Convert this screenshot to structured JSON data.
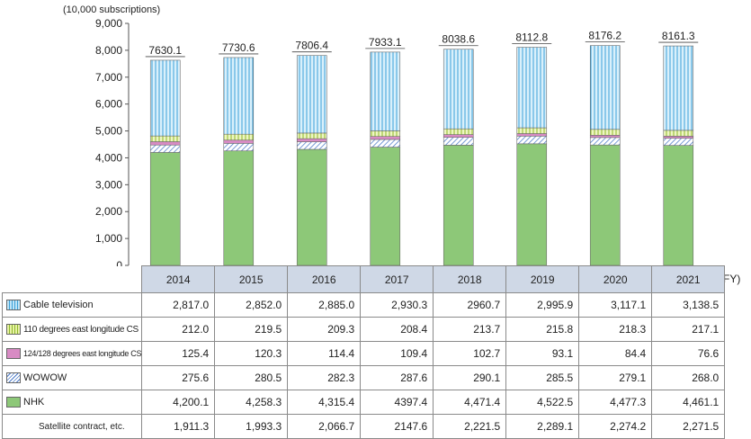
{
  "unit_label": "(10,000 subscriptions)",
  "fy_label": "(FY)",
  "chart_data": {
    "type": "bar",
    "stacked": true,
    "categories": [
      "2014",
      "2015",
      "2016",
      "2017",
      "2018",
      "2019",
      "2020",
      "2021"
    ],
    "ylim": [
      0,
      9000
    ],
    "yticks": [
      "0",
      "1,000",
      "2,000",
      "3,000",
      "4,000",
      "5,000",
      "6,000",
      "7,000",
      "8,000",
      "9,000"
    ],
    "totals": [
      "7630.1",
      "7730.6",
      "7806.4",
      "7933.1",
      "8038.6",
      "8112.8",
      "8176.2",
      "8161.3"
    ],
    "total_values": [
      7630.1,
      7730.6,
      7806.4,
      7933.1,
      8038.6,
      8112.8,
      8176.2,
      8161.3
    ],
    "series": [
      {
        "name": "NHK",
        "values": [
          4200.1,
          4258.3,
          4315.4,
          4397.4,
          4471.4,
          4522.5,
          4477.3,
          4461.1
        ],
        "color": "#8dc878"
      },
      {
        "name": "WOWOW",
        "values": [
          275.6,
          280.5,
          282.3,
          287.6,
          290.1,
          285.5,
          279.1,
          268.0
        ],
        "color": "#4b7ac8"
      },
      {
        "name": "124/128 degrees east longitude CS",
        "values": [
          125.4,
          120.3,
          114.4,
          109.4,
          102.7,
          93.1,
          84.4,
          76.6
        ],
        "color": "#d88bc4"
      },
      {
        "name": "110 degrees east longitude CS",
        "values": [
          212.0,
          219.5,
          209.3,
          208.4,
          213.7,
          215.8,
          218.3,
          217.1
        ],
        "color": "#c8e07a"
      },
      {
        "name": "Cable television",
        "values": [
          2817.0,
          2852.0,
          2885.0,
          2930.3,
          2960.7,
          2995.9,
          3117.1,
          3138.5
        ],
        "color": "#3aa0d8"
      }
    ]
  },
  "table": {
    "rows": [
      {
        "label": "Cable television",
        "cells": [
          "2,817.0",
          "2,852.0",
          "2,885.0",
          "2,930.3",
          "2960.7",
          "2,995.9",
          "3,117.1",
          "3,138.5"
        ]
      },
      {
        "label": "110 degrees east longitude CS",
        "cells": [
          "212.0",
          "219.5",
          "209.3",
          "208.4",
          "213.7",
          "215.8",
          "218.3",
          "217.1"
        ]
      },
      {
        "label": "124/128 degrees east longitude CS",
        "cells": [
          "125.4",
          "120.3",
          "114.4",
          "109.4",
          "102.7",
          "93.1",
          "84.4",
          "76.6"
        ]
      },
      {
        "label": "WOWOW",
        "cells": [
          "275.6",
          "280.5",
          "282.3",
          "287.6",
          "290.1",
          "285.5",
          "279.1",
          "268.0"
        ]
      },
      {
        "label": "NHK",
        "cells": [
          "4,200.1",
          "4,258.3",
          "4,315.4",
          "4397.4",
          "4,471.4",
          "4,522.5",
          "4,477.3",
          "4,461.1"
        ]
      },
      {
        "label": "Satellite contract, etc.",
        "cells": [
          "1,911.3",
          "1,993.3",
          "2,066.7",
          "2147.6",
          "2,221.5",
          "2,289.1",
          "2,274.2",
          "2,271.5"
        ]
      }
    ]
  }
}
